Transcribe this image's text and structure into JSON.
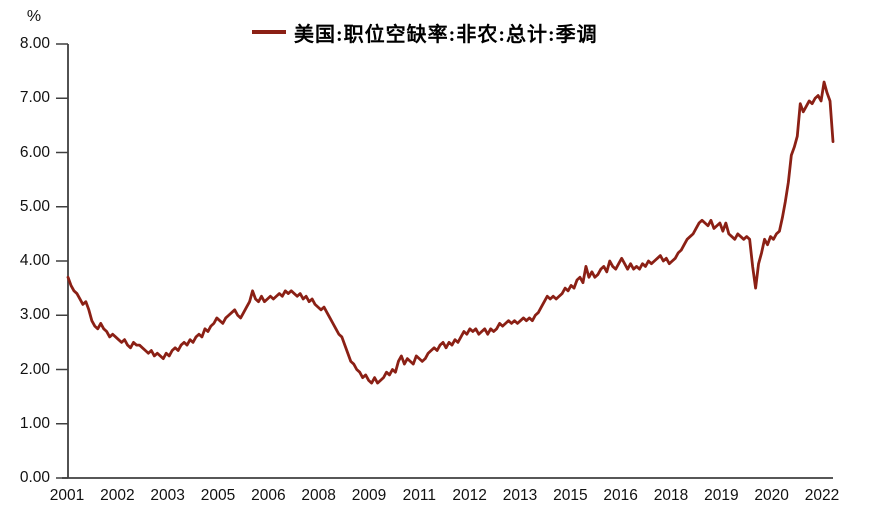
{
  "legend": {
    "series_label": "美国:职位空缺率:非农:总计:季调"
  },
  "colors": {
    "line": "#8B2015",
    "axis": "#3F3F3F",
    "text": "#111111",
    "background": "#FFFFFF"
  },
  "chart_data": {
    "type": "line",
    "title": "",
    "xlabel": "",
    "ylabel": "%",
    "ylim": [
      0,
      8
    ],
    "grid": "off",
    "legend_position": "top-center",
    "y_tick_labels": [
      "0.00",
      "1.00",
      "2.00",
      "3.00",
      "4.00",
      "5.00",
      "6.00",
      "7.00",
      "8.00"
    ],
    "x_tick_labels": [
      "2001",
      "2002",
      "2003",
      "2005",
      "2006",
      "2008",
      "2009",
      "2011",
      "2012",
      "2013",
      "2015",
      "2016",
      "2018",
      "2019",
      "2020",
      "2022"
    ],
    "series": [
      {
        "name": "美国:职位空缺率:非农:总计:季调",
        "unit": "%",
        "frequency": "monthly",
        "x_start": "2001-01",
        "x_end": "2022-06",
        "values": [
          3.7,
          3.55,
          3.45,
          3.4,
          3.3,
          3.2,
          3.25,
          3.1,
          2.9,
          2.8,
          2.75,
          2.85,
          2.75,
          2.7,
          2.6,
          2.65,
          2.6,
          2.55,
          2.5,
          2.55,
          2.45,
          2.4,
          2.5,
          2.45,
          2.45,
          2.4,
          2.35,
          2.3,
          2.35,
          2.25,
          2.3,
          2.25,
          2.2,
          2.3,
          2.25,
          2.35,
          2.4,
          2.35,
          2.45,
          2.5,
          2.45,
          2.55,
          2.5,
          2.6,
          2.65,
          2.6,
          2.75,
          2.7,
          2.8,
          2.85,
          2.95,
          2.9,
          2.85,
          2.95,
          3.0,
          3.05,
          3.1,
          3.0,
          2.95,
          3.05,
          3.15,
          3.25,
          3.45,
          3.3,
          3.25,
          3.35,
          3.25,
          3.3,
          3.35,
          3.3,
          3.35,
          3.4,
          3.35,
          3.45,
          3.4,
          3.45,
          3.4,
          3.35,
          3.4,
          3.3,
          3.35,
          3.25,
          3.3,
          3.2,
          3.15,
          3.1,
          3.15,
          3.05,
          2.95,
          2.85,
          2.75,
          2.65,
          2.6,
          2.45,
          2.3,
          2.15,
          2.1,
          2.0,
          1.95,
          1.85,
          1.9,
          1.8,
          1.75,
          1.85,
          1.75,
          1.8,
          1.85,
          1.95,
          1.9,
          2.0,
          1.95,
          2.15,
          2.25,
          2.1,
          2.2,
          2.15,
          2.1,
          2.25,
          2.2,
          2.15,
          2.2,
          2.3,
          2.35,
          2.4,
          2.35,
          2.45,
          2.5,
          2.4,
          2.5,
          2.45,
          2.55,
          2.5,
          2.6,
          2.7,
          2.65,
          2.75,
          2.7,
          2.75,
          2.65,
          2.7,
          2.75,
          2.65,
          2.75,
          2.7,
          2.75,
          2.85,
          2.8,
          2.85,
          2.9,
          2.85,
          2.9,
          2.85,
          2.9,
          2.95,
          2.9,
          2.95,
          2.9,
          3.0,
          3.05,
          3.15,
          3.25,
          3.35,
          3.3,
          3.35,
          3.3,
          3.35,
          3.4,
          3.5,
          3.45,
          3.55,
          3.5,
          3.65,
          3.7,
          3.6,
          3.9,
          3.7,
          3.8,
          3.7,
          3.75,
          3.85,
          3.9,
          3.8,
          4.0,
          3.9,
          3.85,
          3.95,
          4.05,
          3.95,
          3.85,
          3.95,
          3.85,
          3.9,
          3.85,
          3.95,
          3.9,
          4.0,
          3.95,
          4.0,
          4.05,
          4.1,
          4.0,
          4.05,
          3.95,
          4.0,
          4.05,
          4.15,
          4.2,
          4.3,
          4.4,
          4.45,
          4.5,
          4.6,
          4.7,
          4.75,
          4.7,
          4.65,
          4.75,
          4.6,
          4.65,
          4.7,
          4.55,
          4.7,
          4.5,
          4.45,
          4.4,
          4.5,
          4.45,
          4.4,
          4.45,
          4.4,
          3.9,
          3.5,
          3.95,
          4.15,
          4.4,
          4.3,
          4.45,
          4.4,
          4.5,
          4.55,
          4.8,
          5.1,
          5.45,
          5.95,
          6.1,
          6.3,
          6.9,
          6.75,
          6.85,
          6.95,
          6.9,
          7.0,
          7.05,
          6.95,
          7.3,
          7.1,
          6.95,
          6.2
        ]
      }
    ]
  }
}
